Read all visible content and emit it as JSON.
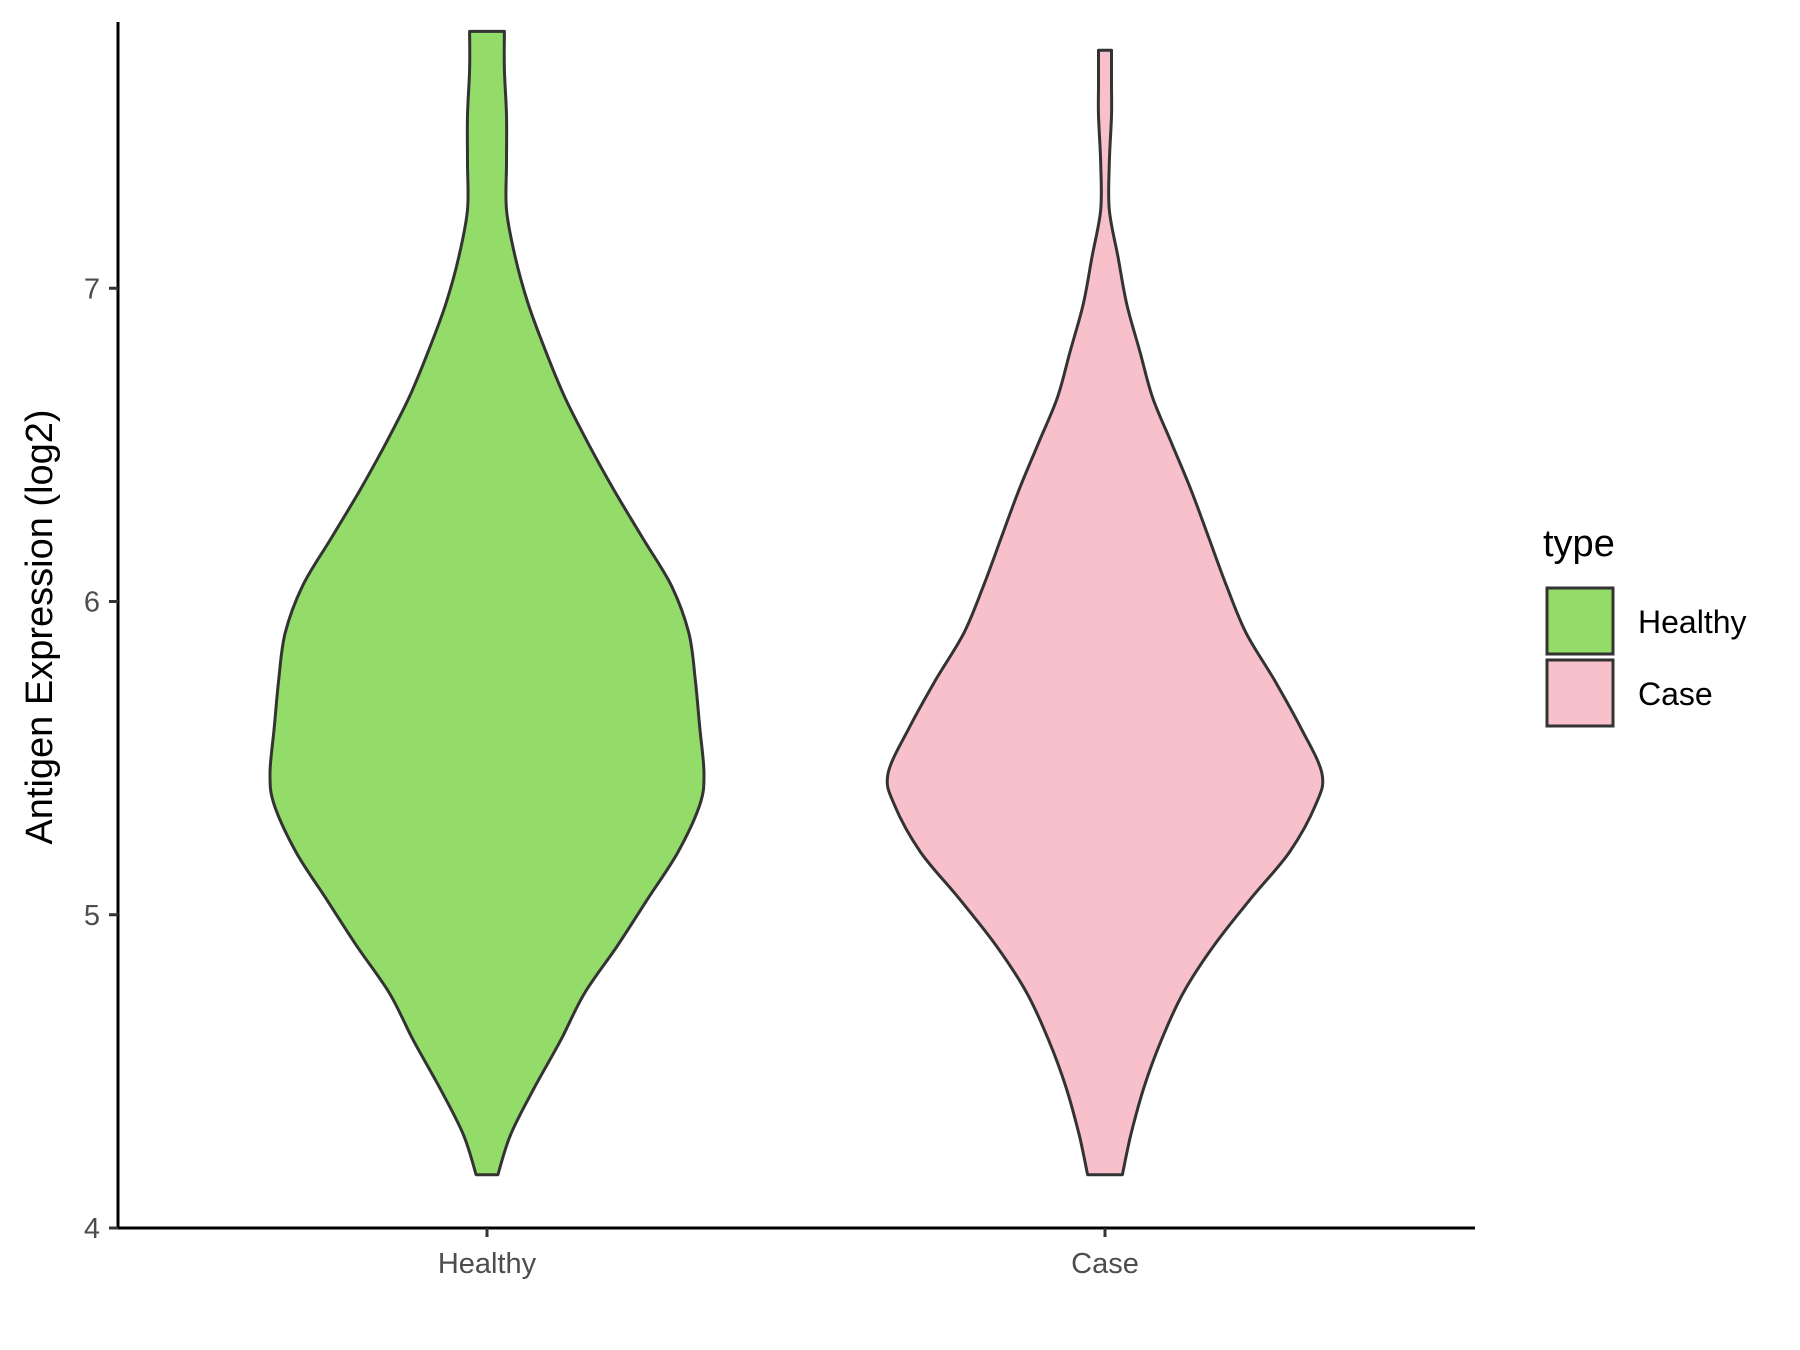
{
  "chart_data": {
    "type": "violin",
    "title": "",
    "xlabel": "",
    "ylabel": "Antigen Expression (log2)",
    "ylim": [
      4,
      7.85
    ],
    "yticks": [
      4,
      5,
      6,
      7
    ],
    "categories": [
      "Healthy",
      "Case"
    ],
    "legend": {
      "title": "type",
      "placement": "right",
      "entries": [
        {
          "label": "Healthy",
          "color": "#93dc6a"
        },
        {
          "label": "Case",
          "color": "#f8c0cb"
        }
      ]
    },
    "series": [
      {
        "category": "Healthy",
        "color": "#93dc6a",
        "min": 4.17,
        "max": 7.82,
        "density_profile": [
          [
            4.17,
            0.05
          ],
          [
            4.3,
            0.11
          ],
          [
            4.45,
            0.22
          ],
          [
            4.6,
            0.34
          ],
          [
            4.75,
            0.45
          ],
          [
            4.9,
            0.6
          ],
          [
            5.05,
            0.74
          ],
          [
            5.2,
            0.88
          ],
          [
            5.35,
            0.98
          ],
          [
            5.45,
            1.0
          ],
          [
            5.6,
            0.98
          ],
          [
            5.75,
            0.96
          ],
          [
            5.9,
            0.93
          ],
          [
            6.05,
            0.85
          ],
          [
            6.2,
            0.72
          ],
          [
            6.35,
            0.59
          ],
          [
            6.5,
            0.47
          ],
          [
            6.65,
            0.36
          ],
          [
            6.8,
            0.27
          ],
          [
            6.95,
            0.19
          ],
          [
            7.1,
            0.13
          ],
          [
            7.25,
            0.09
          ],
          [
            7.4,
            0.09
          ],
          [
            7.55,
            0.09
          ],
          [
            7.7,
            0.08
          ],
          [
            7.82,
            0.08
          ]
        ]
      },
      {
        "category": "Case",
        "color": "#f8c0cb",
        "min": 4.17,
        "max": 7.76,
        "density_profile": [
          [
            4.17,
            0.08
          ],
          [
            4.3,
            0.12
          ],
          [
            4.45,
            0.18
          ],
          [
            4.6,
            0.26
          ],
          [
            4.75,
            0.36
          ],
          [
            4.9,
            0.5
          ],
          [
            5.05,
            0.67
          ],
          [
            5.2,
            0.85
          ],
          [
            5.35,
            0.97
          ],
          [
            5.45,
            1.0
          ],
          [
            5.6,
            0.9
          ],
          [
            5.75,
            0.78
          ],
          [
            5.9,
            0.65
          ],
          [
            6.05,
            0.56
          ],
          [
            6.2,
            0.48
          ],
          [
            6.35,
            0.4
          ],
          [
            6.5,
            0.31
          ],
          [
            6.65,
            0.22
          ],
          [
            6.8,
            0.16
          ],
          [
            6.95,
            0.1
          ],
          [
            7.1,
            0.06
          ],
          [
            7.25,
            0.02
          ],
          [
            7.4,
            0.02
          ],
          [
            7.55,
            0.03
          ],
          [
            7.65,
            0.03
          ],
          [
            7.76,
            0.03
          ]
        ]
      }
    ]
  }
}
